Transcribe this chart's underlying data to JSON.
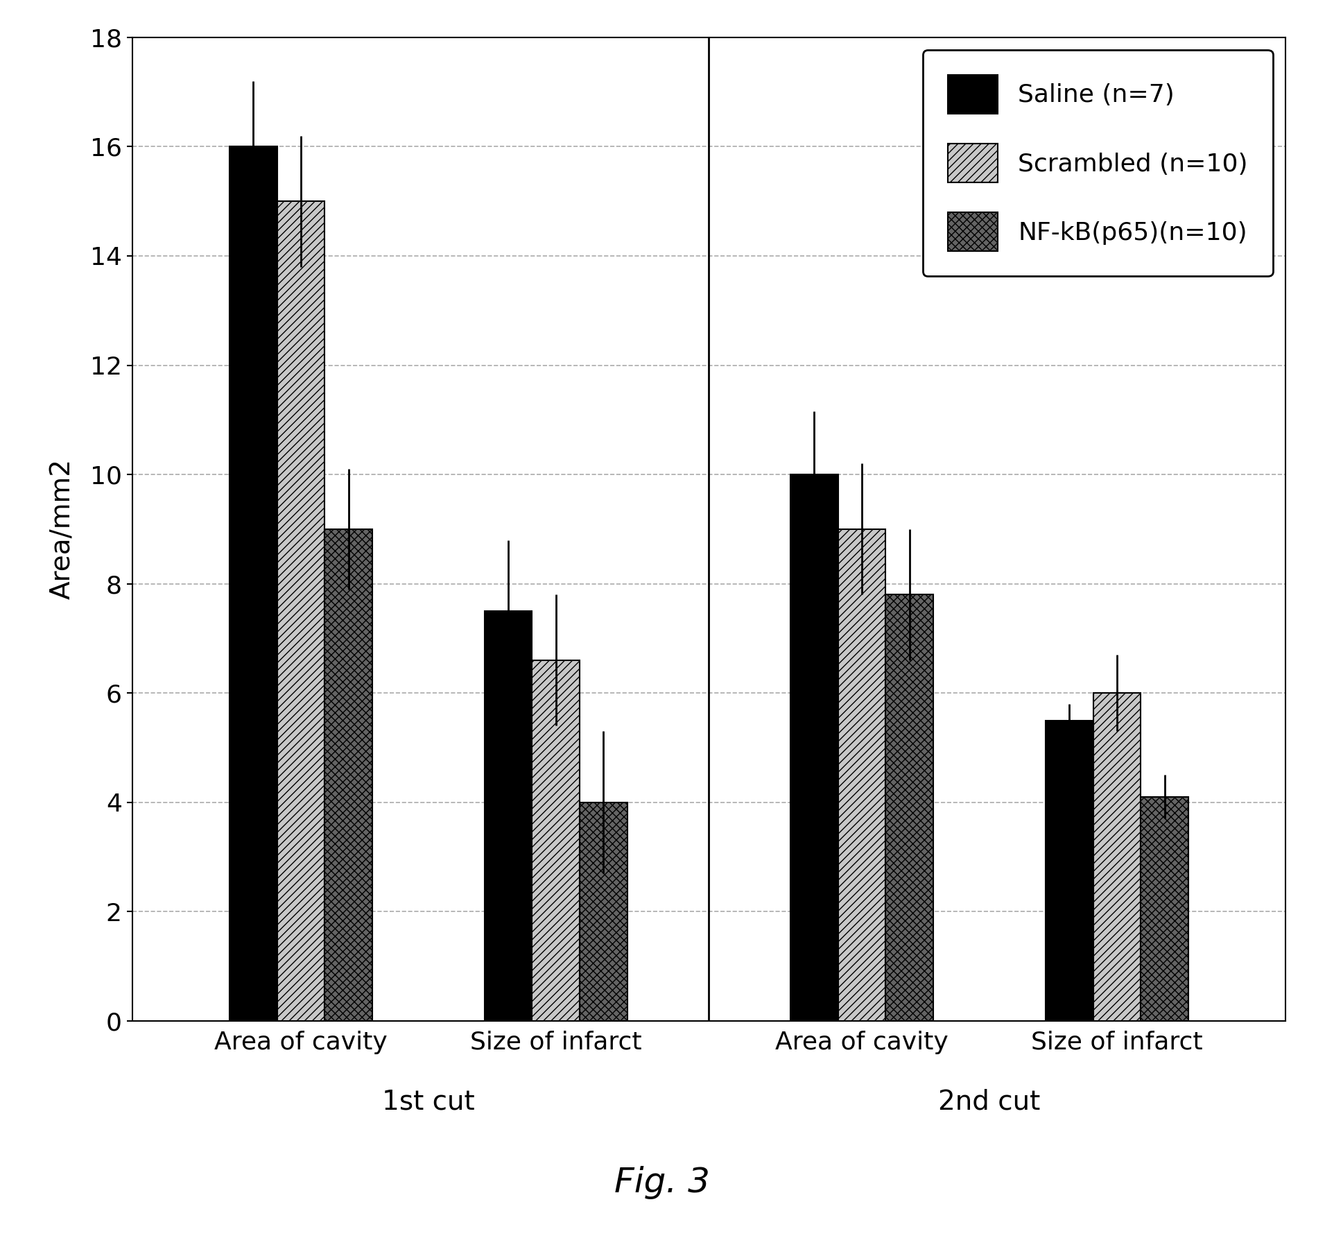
{
  "title": "Fig. 3",
  "ylabel": "Area/mm2",
  "ylim": [
    0,
    18
  ],
  "yticks": [
    0,
    2,
    4,
    6,
    8,
    10,
    12,
    14,
    16,
    18
  ],
  "groups": [
    "Area of cavity",
    "Size of infarct",
    "Area of cavity",
    "Size of infarct"
  ],
  "group_labels": [
    "1st cut",
    "2nd cut"
  ],
  "series": [
    {
      "label": "Saline (n=7)",
      "color": "#000000",
      "hatch": "",
      "values": [
        16.0,
        7.5,
        10.0,
        5.5
      ],
      "errors": [
        1.2,
        1.3,
        1.15,
        0.3
      ]
    },
    {
      "label": "Scrambled (n=10)",
      "color": "#c8c8c8",
      "hatch": "///",
      "values": [
        15.0,
        6.6,
        9.0,
        6.0
      ],
      "errors": [
        1.2,
        1.2,
        1.2,
        0.7
      ]
    },
    {
      "label": "NF-kB(p65)(n=10)",
      "color": "#646464",
      "hatch": "xxx",
      "values": [
        9.0,
        4.0,
        7.8,
        4.1
      ],
      "errors": [
        1.1,
        1.3,
        1.2,
        0.4
      ]
    }
  ],
  "bar_width": 0.28,
  "background_color": "#ffffff",
  "grid_color": "#aaaaaa",
  "legend_fontsize": 26,
  "axis_label_fontsize": 28,
  "tick_fontsize": 26,
  "title_fontsize": 36,
  "group_positions": [
    0,
    1.5,
    3.3,
    4.8
  ]
}
